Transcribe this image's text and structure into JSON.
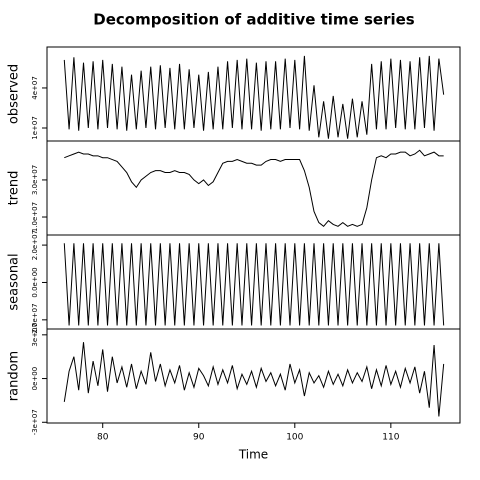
{
  "chart_data": [
    {
      "type": "line",
      "title": "Decomposition of additive time series",
      "ylabel": "observed",
      "x": [
        76,
        76.5,
        77,
        77.5,
        78,
        78.5,
        79,
        79.5,
        80,
        80.5,
        81,
        81.5,
        82,
        82.5,
        83,
        83.5,
        84,
        84.5,
        85,
        85.5,
        86,
        86.5,
        87,
        87.5,
        88,
        88.5,
        89,
        89.5,
        90,
        90.5,
        91,
        91.5,
        92,
        92.5,
        93,
        93.5,
        94,
        94.5,
        95,
        95.5,
        96,
        96.5,
        97,
        97.5,
        98,
        98.5,
        99,
        99.5,
        100,
        100.5,
        101,
        101.5,
        102,
        102.5,
        103,
        103.5,
        104,
        104.5,
        105,
        105.5,
        106,
        106.5,
        107,
        107.5,
        108,
        108.5,
        109,
        109.5,
        110,
        110.5,
        111,
        111.5,
        112,
        112.5,
        113,
        113.5,
        114,
        114.5,
        115,
        115.5
      ],
      "values": [
        61000000.0,
        9000000.0,
        63000000.0,
        8000000.0,
        59000000.0,
        10000000.0,
        60000000.0,
        9000000.0,
        61000000.0,
        10000000.0,
        58000000.0,
        9000000.0,
        56000000.0,
        8000000.0,
        50000000.0,
        9000000.0,
        53000000.0,
        10000000.0,
        56000000.0,
        9000000.0,
        57000000.0,
        10000000.0,
        55000000.0,
        9000000.0,
        58000000.0,
        9000000.0,
        54000000.0,
        10000000.0,
        50000000.0,
        8000000.0,
        52000000.0,
        9000000.0,
        56000000.0,
        9000000.0,
        60000000.0,
        10000000.0,
        61000000.0,
        9000000.0,
        62000000.0,
        9000000.0,
        59000000.0,
        8000000.0,
        60000000.0,
        9000000.0,
        60000000.0,
        9000000.0,
        62000000.0,
        10000000.0,
        61000000.0,
        9000000.0,
        64000000.0,
        8000000.0,
        42000000.0,
        3000000.0,
        30000000.0,
        2000000.0,
        34000000.0,
        3000000.0,
        28000000.0,
        2000000.0,
        32000000.0,
        3000000.0,
        30000000.0,
        5000000.0,
        58000000.0,
        9000000.0,
        60000000.0,
        9000000.0,
        62000000.0,
        10000000.0,
        61000000.0,
        9000000.0,
        60000000.0,
        9000000.0,
        63000000.0,
        10000000.0,
        64000000.0,
        8000000.0,
        62000000.0,
        35000000.0
      ],
      "ylim": [
        250000.0,
        70700000.0
      ],
      "yticks": [
        {
          "value": 10000000.0,
          "label": "1e+07"
        },
        {
          "value": 40000000.0,
          "label": "4e+07"
        }
      ],
      "color": "#000000"
    },
    {
      "type": "line",
      "ylabel": "trend",
      "x": [
        76,
        76.5,
        77,
        77.5,
        78,
        78.5,
        79,
        79.5,
        80,
        80.5,
        81,
        81.5,
        82,
        82.5,
        83,
        83.5,
        84,
        84.5,
        85,
        85.5,
        86,
        86.5,
        87,
        87.5,
        88,
        88.5,
        89,
        89.5,
        90,
        90.5,
        91,
        91.5,
        92,
        92.5,
        93,
        93.5,
        94,
        94.5,
        95,
        95.5,
        96,
        96.5,
        97,
        97.5,
        98,
        98.5,
        99,
        99.5,
        100,
        100.5,
        101,
        101.5,
        102,
        102.5,
        103,
        103.5,
        104,
        104.5,
        105,
        105.5,
        106,
        106.5,
        107,
        107.5,
        108,
        108.5,
        109,
        109.5,
        110,
        110.5,
        111,
        111.5,
        112,
        112.5,
        113,
        113.5,
        114,
        114.5,
        115,
        115.5
      ],
      "values": [
        42000000.0,
        43000000.0,
        44000000.0,
        45000000.0,
        44000000.0,
        44000000.0,
        43000000.0,
        43000000.0,
        42000000.0,
        42000000.0,
        41000000.0,
        40000000.0,
        37000000.0,
        34000000.0,
        29000000.0,
        26000000.0,
        30000000.0,
        32000000.0,
        34000000.0,
        35000000.0,
        35000000.0,
        34000000.0,
        34000000.0,
        35000000.0,
        34000000.0,
        34000000.0,
        33000000.0,
        30000000.0,
        28000000.0,
        30000000.0,
        27000000.0,
        29000000.0,
        34000000.0,
        39000000.0,
        40000000.0,
        40000000.0,
        41000000.0,
        40000000.0,
        39000000.0,
        39000000.0,
        38000000.0,
        38000000.0,
        40000000.0,
        41000000.0,
        41000000.0,
        40000000.0,
        41000000.0,
        41000000.0,
        41000000.0,
        41000000.0,
        35000000.0,
        26000000.0,
        13000000.0,
        7000000.0,
        5000000.0,
        8000000.0,
        6000000.0,
        5000000.0,
        7000000.0,
        5000000.0,
        6000000.0,
        5000000.0,
        6000000.0,
        15000000.0,
        30000000.0,
        42000000.0,
        43000000.0,
        42000000.0,
        44000000.0,
        44000000.0,
        45000000.0,
        45000000.0,
        43000000.0,
        44000000.0,
        46000000.0,
        43000000.0,
        44000000.0,
        45000000.0,
        43000000.0,
        43000000.0
      ],
      "ylim": [
        300000.0,
        51000000.0
      ],
      "yticks": [
        {
          "value": 10000000.0,
          "label": "1.0e+07"
        },
        {
          "value": 30000000.0,
          "label": "3.0e+07"
        }
      ],
      "color": "#000000"
    },
    {
      "type": "line",
      "ylabel": "seasonal",
      "x": [
        76,
        76.5,
        77,
        77.5,
        78,
        78.5,
        79,
        79.5,
        80,
        80.5,
        81,
        81.5,
        82,
        82.5,
        83,
        83.5,
        84,
        84.5,
        85,
        85.5,
        86,
        86.5,
        87,
        87.5,
        88,
        88.5,
        89,
        89.5,
        90,
        90.5,
        91,
        91.5,
        92,
        92.5,
        93,
        93.5,
        94,
        94.5,
        95,
        95.5,
        96,
        96.5,
        97,
        97.5,
        98,
        98.5,
        99,
        99.5,
        100,
        100.5,
        101,
        101.5,
        102,
        102.5,
        103,
        103.5,
        104,
        104.5,
        105,
        105.5,
        106,
        106.5,
        107,
        107.5,
        108,
        108.5,
        109,
        109.5,
        110,
        110.5,
        111,
        111.5,
        112,
        112.5,
        113,
        113.5,
        114,
        114.5,
        115,
        115.5
      ],
      "values": [
        21000000.0,
        -23000000.0,
        21000000.0,
        -23000000.0,
        21000000.0,
        -23000000.0,
        21000000.0,
        -23000000.0,
        21000000.0,
        -23000000.0,
        21000000.0,
        -23000000.0,
        21000000.0,
        -23000000.0,
        21000000.0,
        -23000000.0,
        21000000.0,
        -23000000.0,
        21000000.0,
        -23000000.0,
        21000000.0,
        -23000000.0,
        21000000.0,
        -23000000.0,
        21000000.0,
        -23000000.0,
        21000000.0,
        -23000000.0,
        21000000.0,
        -23000000.0,
        21000000.0,
        -23000000.0,
        21000000.0,
        -23000000.0,
        21000000.0,
        -23000000.0,
        21000000.0,
        -23000000.0,
        21000000.0,
        -23000000.0,
        21000000.0,
        -23000000.0,
        21000000.0,
        -23000000.0,
        21000000.0,
        -23000000.0,
        21000000.0,
        -23000000.0,
        21000000.0,
        -23000000.0,
        21000000.0,
        -23000000.0,
        21000000.0,
        -23000000.0,
        21000000.0,
        -23000000.0,
        21000000.0,
        -23000000.0,
        21000000.0,
        -23000000.0,
        21000000.0,
        -23000000.0,
        21000000.0,
        -23000000.0,
        21000000.0,
        -23000000.0,
        21000000.0,
        -23000000.0,
        21000000.0,
        -23000000.0,
        21000000.0,
        -23000000.0,
        21000000.0,
        -23000000.0,
        21000000.0,
        -23000000.0,
        21000000.0,
        -23000000.0,
        21000000.0,
        -23000000.0
      ],
      "ylim": [
        -24900000.0,
        25400000.0
      ],
      "yticks": [
        {
          "value": -20000000.0,
          "label": "-2.0e+07"
        },
        {
          "value": 0,
          "label": "0.0e+00"
        },
        {
          "value": 20000000.0,
          "label": "2.0e+07"
        }
      ],
      "color": "#000000"
    },
    {
      "type": "line",
      "ylabel": "random",
      "xlabel": "Time",
      "xlim": [
        74.2,
        117.2
      ],
      "xticks": [
        80,
        90,
        100,
        110
      ],
      "x": [
        76,
        76.5,
        77,
        77.5,
        78,
        78.5,
        79,
        79.5,
        80,
        80.5,
        81,
        81.5,
        82,
        82.5,
        83,
        83.5,
        84,
        84.5,
        85,
        85.5,
        86,
        86.5,
        87,
        87.5,
        88,
        88.5,
        89,
        89.5,
        90,
        90.5,
        91,
        91.5,
        92,
        92.5,
        93,
        93.5,
        94,
        94.5,
        95,
        95.5,
        96,
        96.5,
        97,
        97.5,
        98,
        98.5,
        99,
        99.5,
        100,
        100.5,
        101,
        101.5,
        102,
        102.5,
        103,
        103.5,
        104,
        104.5,
        105,
        105.5,
        106,
        106.5,
        107,
        107.5,
        108,
        108.5,
        109,
        109.5,
        110,
        110.5,
        111,
        111.5,
        112,
        112.5,
        113,
        113.5,
        114,
        114.5,
        115,
        115.5
      ],
      "values": [
        -16000000.0,
        5000000.0,
        15000000.0,
        -8000000.0,
        25000000.0,
        -10000000.0,
        12000000.0,
        -5000000.0,
        20000000.0,
        -9000000.0,
        15000000.0,
        -3000000.0,
        8000000.0,
        -6000000.0,
        10000000.0,
        -7000000.0,
        5000000.0,
        -4000000.0,
        18000000.0,
        -2000000.0,
        10000000.0,
        -5000000.0,
        6000000.0,
        -3000000.0,
        9000000.0,
        -8000000.0,
        4000000.0,
        -6000000.0,
        7000000.0,
        2000000.0,
        -5000000.0,
        8000000.0,
        -4000000.0,
        6000000.0,
        -3000000.0,
        9000000.0,
        -7000000.0,
        3000000.0,
        -4000000.0,
        5000000.0,
        -6000000.0,
        7000000.0,
        -2000000.0,
        4000000.0,
        -5000000.0,
        3000000.0,
        -8000000.0,
        10000000.0,
        -3000000.0,
        6000000.0,
        -12000000.0,
        4000000.0,
        -3000000.0,
        2000000.0,
        -6000000.0,
        5000000.0,
        -4000000.0,
        3000000.0,
        -5000000.0,
        6000000.0,
        -3000000.0,
        4000000.0,
        -2000000.0,
        8000000.0,
        -7000000.0,
        6000000.0,
        -5000000.0,
        9000000.0,
        -4000000.0,
        5000000.0,
        -6000000.0,
        7000000.0,
        -3000000.0,
        8000000.0,
        -10000000.0,
        5000000.0,
        -20000000.0,
        23000000.0,
        -26000000.0,
        10000000.0
      ],
      "ylim": [
        -30500000.0,
        34000000.0
      ],
      "yticks": [
        {
          "value": -30000000.0,
          "label": "-3e+07"
        },
        {
          "value": 0,
          "label": "0e+00"
        },
        {
          "value": 30000000.0,
          "label": "3e+07"
        }
      ],
      "color": "#000000"
    }
  ]
}
